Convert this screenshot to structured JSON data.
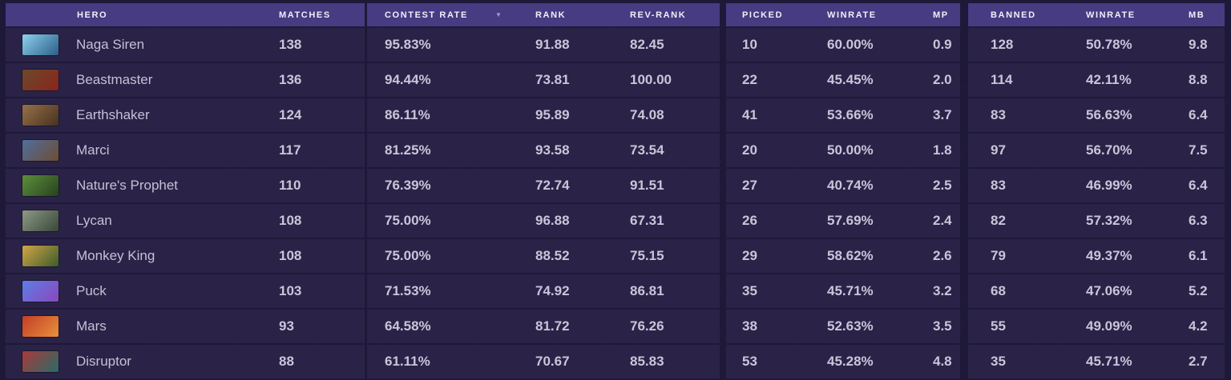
{
  "theme": {
    "page_bg": "#1e1939",
    "header_bg": "#473b82",
    "row_bg": "#2a2347",
    "divider": "#151027",
    "header_text": "#f2effa",
    "row_text": "#cbc4da",
    "sort_arrow_color": "#a79dce"
  },
  "table": {
    "headers": {
      "hero": "HERO",
      "matches": "MATCHES",
      "contest": "CONTEST RATE",
      "rank": "RANK",
      "rev_rank": "REV-RANK",
      "picked": "PICKED",
      "picked_winrate": "WINRATE",
      "mp": "MP",
      "banned": "BANNED",
      "banned_winrate": "WINRATE",
      "mb": "MB"
    },
    "sort": {
      "column": "contest",
      "direction": "desc",
      "icon": "▼"
    },
    "rows": [
      {
        "name": "Naga Siren",
        "matches": "138",
        "contest": "95.83%",
        "rank": "91.88",
        "rev_rank": "82.45",
        "picked": "10",
        "picked_winrate": "60.00%",
        "mp": "0.9",
        "banned": "128",
        "banned_winrate": "50.78%",
        "mb": "9.8",
        "portrait": {
          "c1": "#8fd2ec",
          "c2": "#2b5d8a"
        }
      },
      {
        "name": "Beastmaster",
        "matches": "136",
        "contest": "94.44%",
        "rank": "73.81",
        "rev_rank": "100.00",
        "picked": "22",
        "picked_winrate": "45.45%",
        "mp": "2.0",
        "banned": "114",
        "banned_winrate": "42.11%",
        "mb": "8.8",
        "portrait": {
          "c1": "#6b4a2a",
          "c2": "#8a241c"
        }
      },
      {
        "name": "Earthshaker",
        "matches": "124",
        "contest": "86.11%",
        "rank": "95.89",
        "rev_rank": "74.08",
        "picked": "41",
        "picked_winrate": "53.66%",
        "mp": "3.7",
        "banned": "83",
        "banned_winrate": "56.63%",
        "mb": "6.4",
        "portrait": {
          "c1": "#96714a",
          "c2": "#47321f"
        }
      },
      {
        "name": "Marci",
        "matches": "117",
        "contest": "81.25%",
        "rank": "93.58",
        "rev_rank": "73.54",
        "picked": "20",
        "picked_winrate": "50.00%",
        "mp": "1.8",
        "banned": "97",
        "banned_winrate": "56.70%",
        "mb": "7.5",
        "portrait": {
          "c1": "#4f6f9d",
          "c2": "#6e4c33"
        }
      },
      {
        "name": "Nature's Prophet",
        "matches": "110",
        "contest": "76.39%",
        "rank": "72.74",
        "rev_rank": "91.51",
        "picked": "27",
        "picked_winrate": "40.74%",
        "mp": "2.5",
        "banned": "83",
        "banned_winrate": "46.99%",
        "mb": "6.4",
        "portrait": {
          "c1": "#5d8f3c",
          "c2": "#27421f"
        }
      },
      {
        "name": "Lycan",
        "matches": "108",
        "contest": "75.00%",
        "rank": "96.88",
        "rev_rank": "67.31",
        "picked": "26",
        "picked_winrate": "57.69%",
        "mp": "2.4",
        "banned": "82",
        "banned_winrate": "57.32%",
        "mb": "6.3",
        "portrait": {
          "c1": "#8d9a87",
          "c2": "#39473a"
        }
      },
      {
        "name": "Monkey King",
        "matches": "108",
        "contest": "75.00%",
        "rank": "88.52",
        "rev_rank": "75.15",
        "picked": "29",
        "picked_winrate": "58.62%",
        "mp": "2.6",
        "banned": "79",
        "banned_winrate": "49.37%",
        "mb": "6.1",
        "portrait": {
          "c1": "#d2a648",
          "c2": "#3c5c2a"
        }
      },
      {
        "name": "Puck",
        "matches": "103",
        "contest": "71.53%",
        "rank": "74.92",
        "rev_rank": "86.81",
        "picked": "35",
        "picked_winrate": "45.71%",
        "mp": "3.2",
        "banned": "68",
        "banned_winrate": "47.06%",
        "mb": "5.2",
        "portrait": {
          "c1": "#5d7de8",
          "c2": "#8a48ba"
        }
      },
      {
        "name": "Mars",
        "matches": "93",
        "contest": "64.58%",
        "rank": "81.72",
        "rev_rank": "76.26",
        "picked": "38",
        "picked_winrate": "52.63%",
        "mp": "3.5",
        "banned": "55",
        "banned_winrate": "49.09%",
        "mb": "4.2",
        "portrait": {
          "c1": "#c23e26",
          "c2": "#e8913c"
        }
      },
      {
        "name": "Disruptor",
        "matches": "88",
        "contest": "61.11%",
        "rank": "70.67",
        "rev_rank": "85.83",
        "picked": "53",
        "picked_winrate": "45.28%",
        "mp": "4.8",
        "banned": "35",
        "banned_winrate": "45.71%",
        "mb": "2.7",
        "portrait": {
          "c1": "#a83a3a",
          "c2": "#2a6a68"
        }
      }
    ]
  }
}
